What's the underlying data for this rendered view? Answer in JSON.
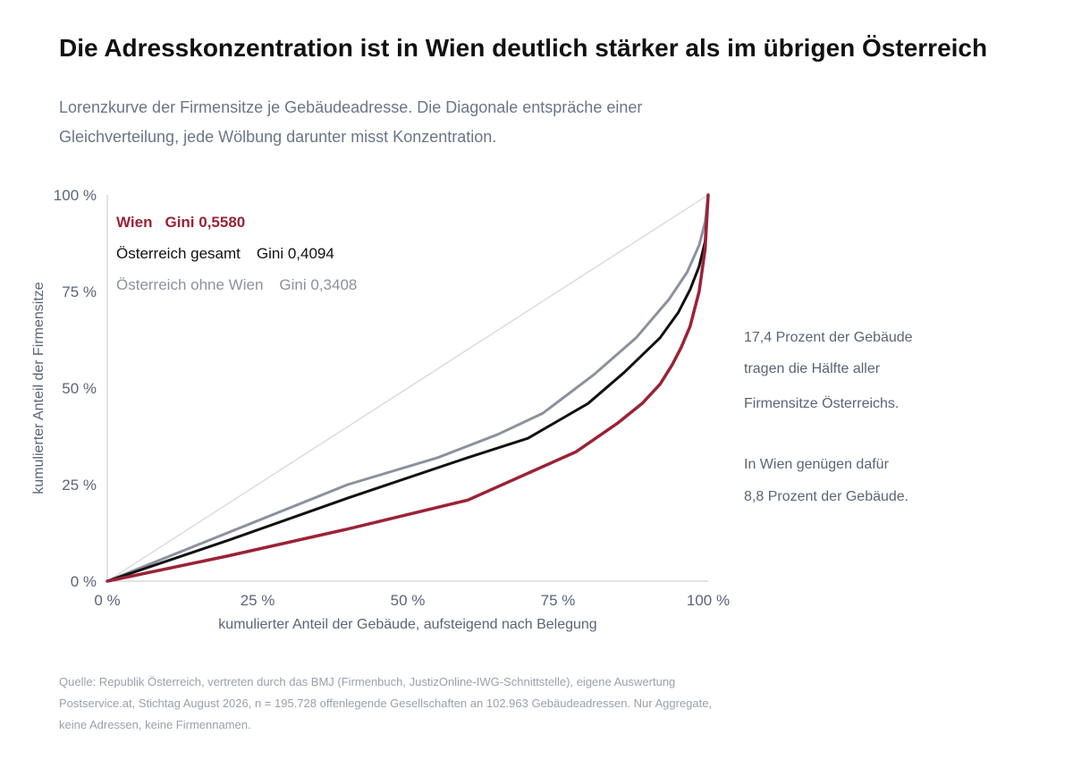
{
  "header": {
    "title": "Die Adresskonzentration ist in Wien deutlich stärker als im übrigen Österreich",
    "subtitle": "Lorenzkurve der Firmensitze je Gebäudeadresse. Die Diagonale entspräche einer Gleichverteilung, jede Wölbung darunter misst Konzentration."
  },
  "annotation": {
    "line1": "17,4 Prozent der Gebäude",
    "line2": "tragen die Hälfte aller",
    "line3": "Firmensitze Österreichs.",
    "line4": "In Wien genügen dafür",
    "line5": "8,8 Prozent der Gebäude."
  },
  "source": {
    "line1": "Quelle: Republik Österreich, vertreten durch das BMJ (Firmenbuch, JustizOnline-IWG-Schnittstelle), eigene Auswertung",
    "line2": "Postservice.at, Stichtag August 2026, n = 195.728 offenlegende Gesellschaften an 102.963 Gebäudeadressen. Nur Aggregate,",
    "line3": "keine Adressen, keine Firmennamen."
  },
  "colors": {
    "wien": "#9b2335",
    "oesterreich": "#111111",
    "ohne_wien": "#8c919e",
    "diagonal": "#dcdcdc",
    "axis": "#c8c8c8",
    "tick_text": "#5c6478"
  },
  "chart_data": {
    "type": "line",
    "xlabel": "kumulierter Anteil der Gebäude, aufsteigend nach Belegung",
    "ylabel": "kumulierter Anteil der Firmensitze",
    "xlim": [
      0,
      100
    ],
    "ylim": [
      0,
      100
    ],
    "x_ticks": [
      "0 %",
      "25 %",
      "50 %",
      "75 %",
      "100 %"
    ],
    "y_ticks": [
      "0 %",
      "25 %",
      "50 %",
      "75 %",
      "100 %"
    ],
    "grid": false,
    "legend_position": "top-left",
    "series": [
      {
        "key": "wien",
        "name": "Wien",
        "gini": "Gini 0,5580",
        "points": [
          [
            0,
            0
          ],
          [
            20,
            6.5
          ],
          [
            40,
            13.5
          ],
          [
            60,
            21
          ],
          [
            78,
            33.5
          ],
          [
            85,
            41
          ],
          [
            89,
            46
          ],
          [
            92,
            51
          ],
          [
            94,
            56
          ],
          [
            95.5,
            60.5
          ],
          [
            97,
            66
          ],
          [
            98.5,
            75
          ],
          [
            99.5,
            86
          ],
          [
            100,
            100
          ]
        ]
      },
      {
        "key": "oesterreich",
        "name": "Österreich gesamt",
        "gini": "Gini 0,4094",
        "points": [
          [
            0,
            0
          ],
          [
            20,
            10.5
          ],
          [
            40,
            21.5
          ],
          [
            60,
            32
          ],
          [
            70,
            37
          ],
          [
            80,
            46
          ],
          [
            86,
            54
          ],
          [
            92,
            63
          ],
          [
            95,
            69.5
          ],
          [
            97,
            75.5
          ],
          [
            98.5,
            81.5
          ],
          [
            99.5,
            88
          ],
          [
            100,
            100
          ]
        ]
      },
      {
        "key": "ohne_wien",
        "name": "Österreich ohne Wien",
        "gini": "Gini 0,3408",
        "points": [
          [
            0,
            0
          ],
          [
            20,
            12.5
          ],
          [
            40,
            25
          ],
          [
            55,
            32
          ],
          [
            65,
            38
          ],
          [
            72.5,
            43.5
          ],
          [
            81,
            53.5
          ],
          [
            88,
            63
          ],
          [
            93.5,
            73
          ],
          [
            96.5,
            80
          ],
          [
            98.5,
            87
          ],
          [
            99.5,
            93
          ],
          [
            100,
            100
          ]
        ]
      }
    ]
  }
}
